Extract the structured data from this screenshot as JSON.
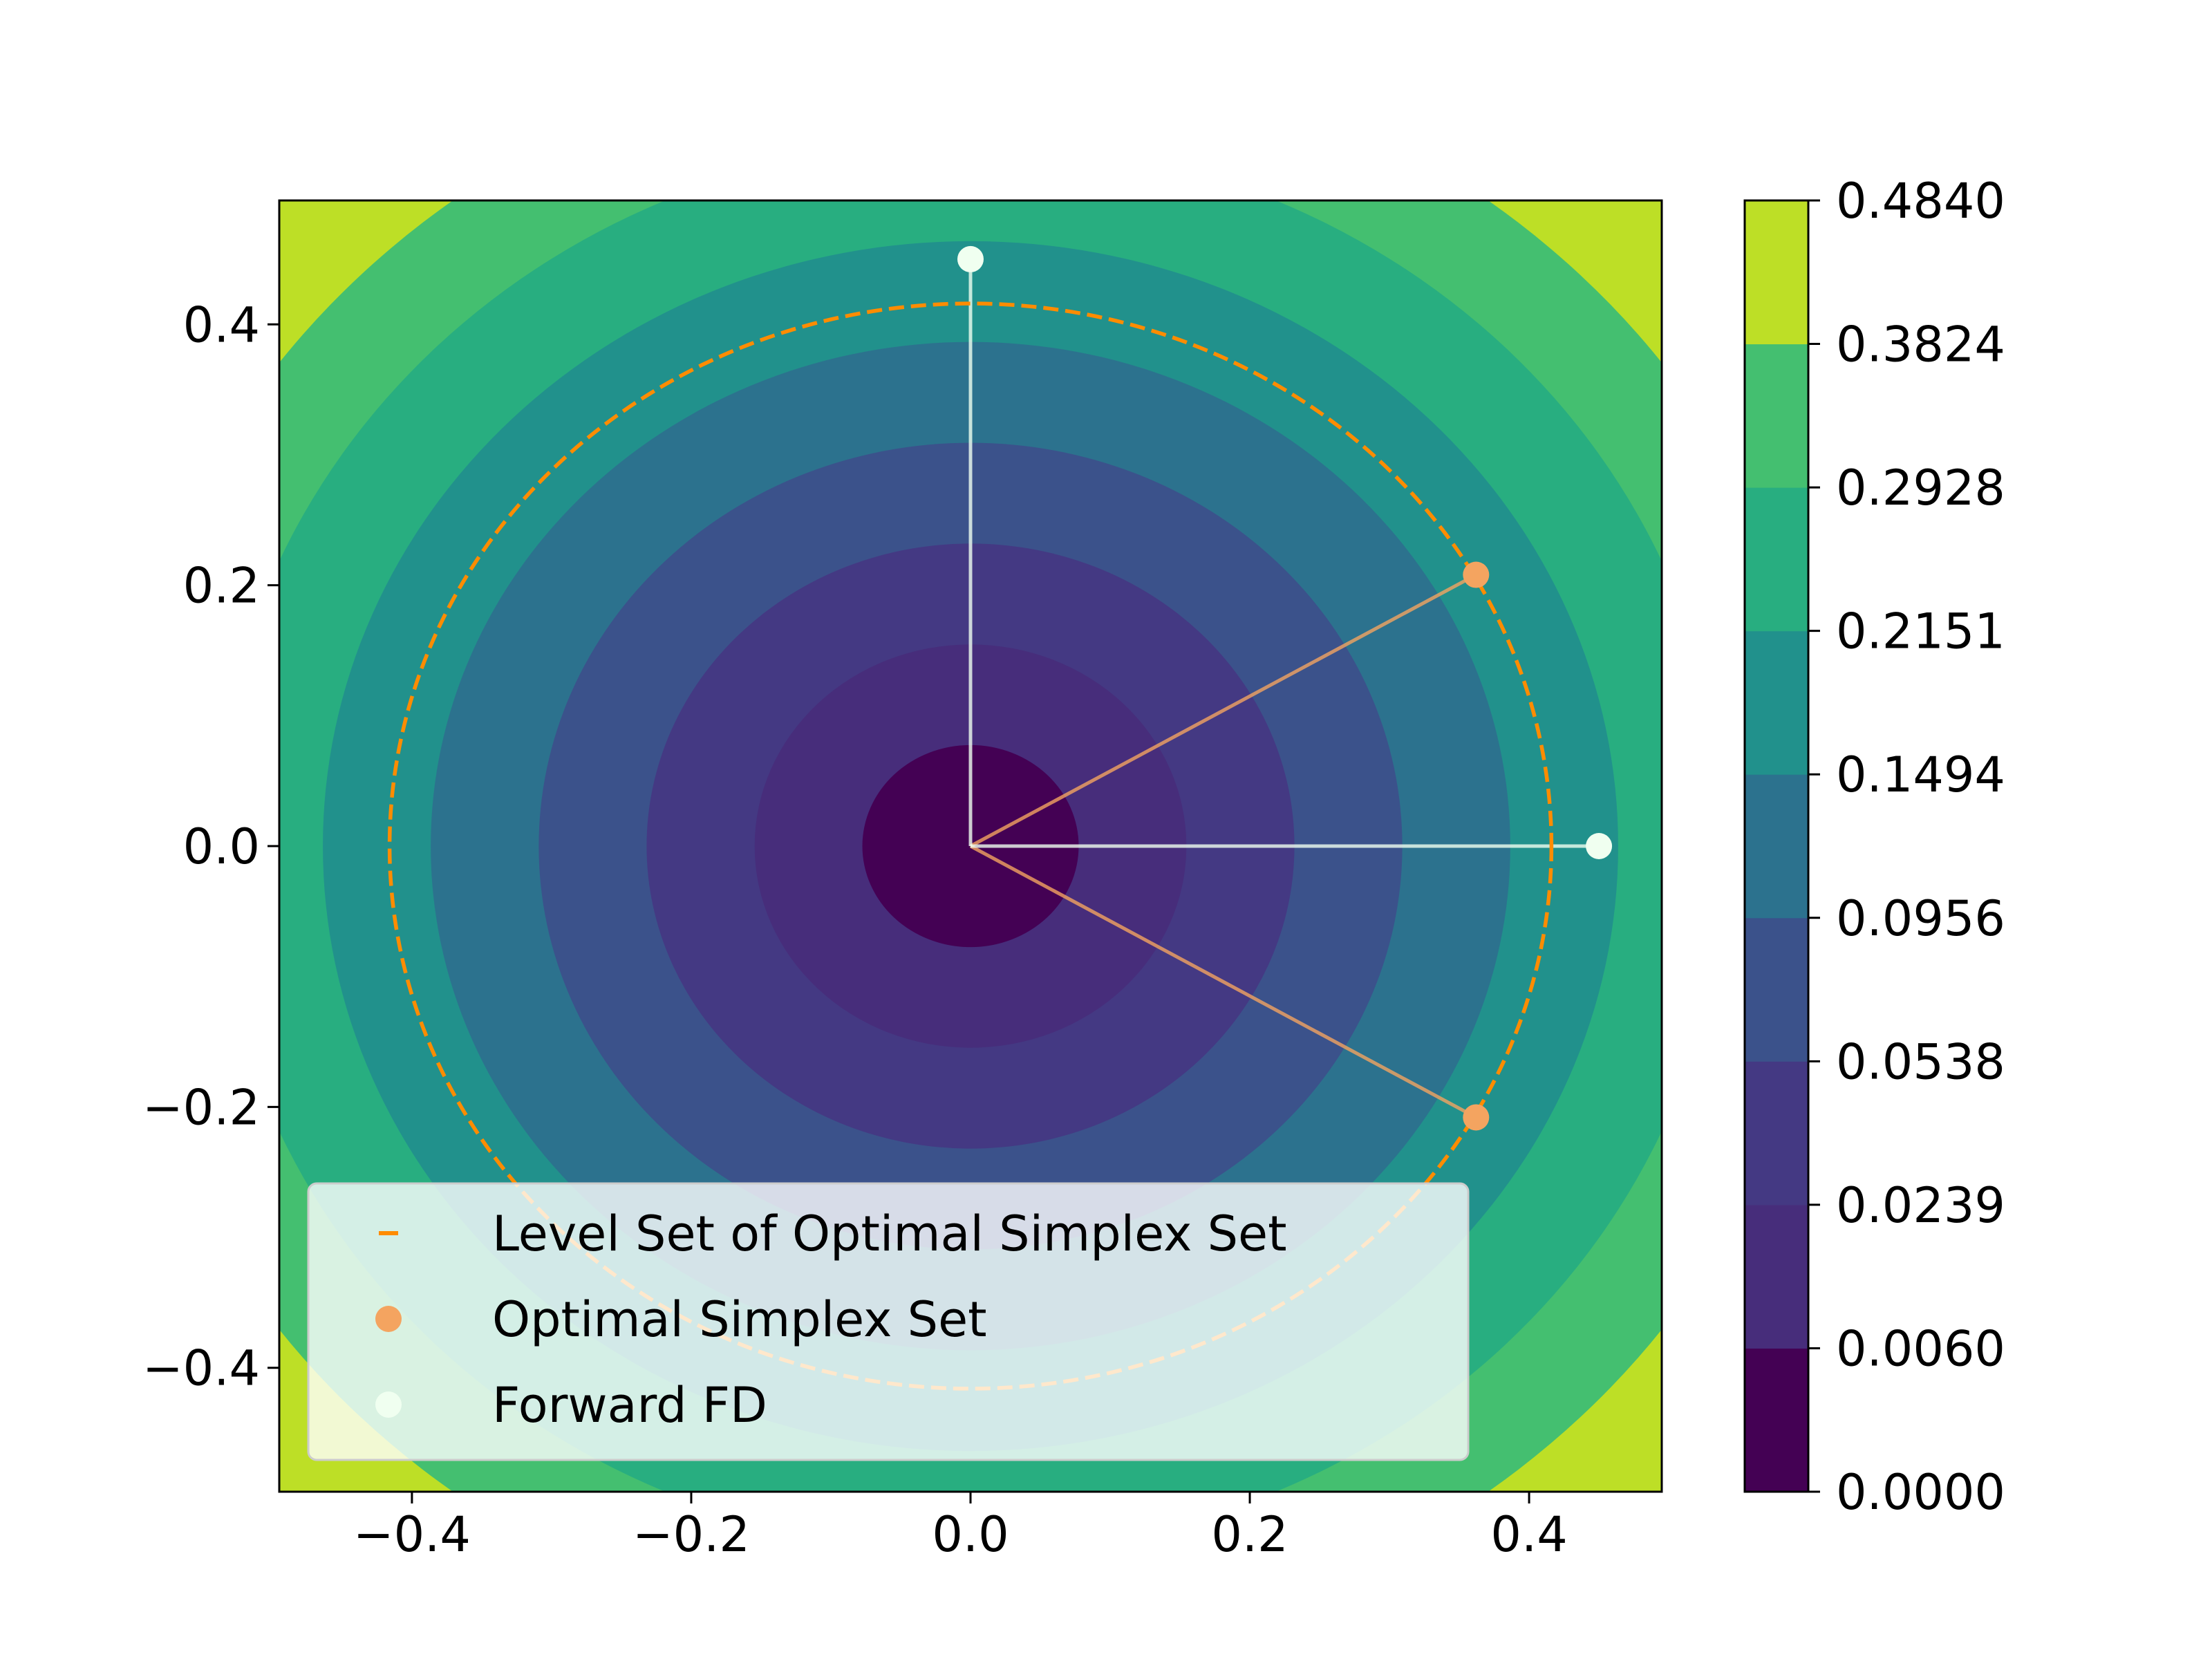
{
  "chart_data": {
    "type": "contour",
    "title": "",
    "xlabel": "",
    "ylabel": "",
    "xlim": [
      -0.495,
      0.495
    ],
    "ylim": [
      -0.495,
      0.495
    ],
    "xticks": [
      -0.4,
      -0.2,
      0.0,
      0.2,
      0.4
    ],
    "yticks": [
      -0.4,
      -0.2,
      0.0,
      0.2,
      0.4
    ],
    "xtick_labels": [
      "−0.4",
      "−0.2",
      "0.0",
      "0.2",
      "0.4"
    ],
    "ytick_labels": [
      "−0.4",
      "−0.2",
      "0.0",
      "0.2",
      "0.4"
    ],
    "colormap": "viridis",
    "contour_levels": [
      0.0,
      0.006,
      0.0239,
      0.0538,
      0.0956,
      0.1494,
      0.2151,
      0.2928,
      0.3824,
      0.484
    ],
    "colorbar_tick_labels": [
      "0.0000",
      "0.0060",
      "0.0239",
      "0.0538",
      "0.0956",
      "0.1494",
      "0.2151",
      "0.2928",
      "0.3824",
      "0.4840"
    ],
    "band_colors": [
      "#440154",
      "#472d7b",
      "#443983",
      "#3b528b",
      "#2c728e",
      "#21918c",
      "#28ae80",
      "#44bf70",
      "#bddf26"
    ],
    "grid": false,
    "legend_position": "lower-left",
    "series": [
      {
        "name": "Level Set of Optimal Simplex Set",
        "kind": "dashed-circle",
        "color": "#ff8c00",
        "center": [
          0,
          0
        ],
        "radius": 0.416
      },
      {
        "name": "Optimal Simplex Set",
        "kind": "points",
        "color": "#f4a460",
        "points": [
          [
            0.362,
            0.208
          ],
          [
            0.362,
            -0.208
          ]
        ]
      },
      {
        "name": "Forward FD",
        "kind": "points",
        "color": "#f0fff0",
        "points": [
          [
            0.0,
            0.45
          ],
          [
            0.45,
            0.0
          ]
        ]
      }
    ],
    "origin": [
      0.0,
      0.0
    ]
  },
  "legend": {
    "items": [
      "Level Set of Optimal Simplex Set",
      "Optimal Simplex Set",
      "Forward FD"
    ]
  }
}
